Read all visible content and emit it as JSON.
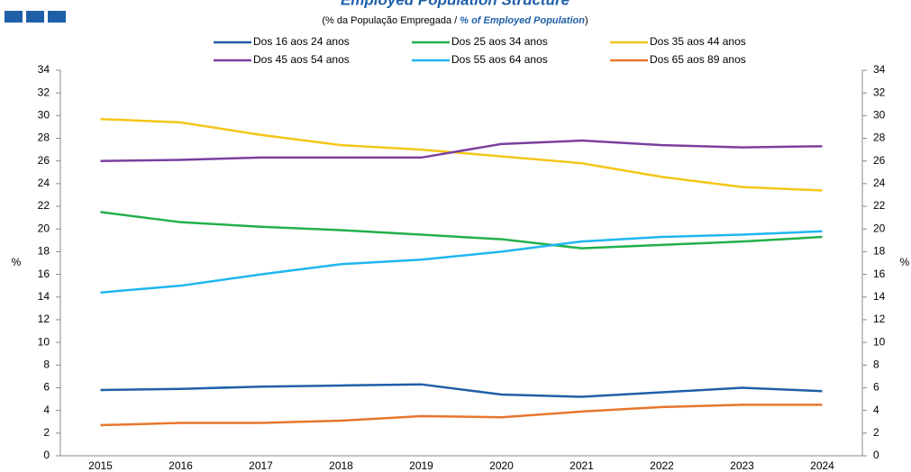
{
  "chart_data": {
    "type": "line",
    "title": "Employed Population Structure",
    "subtitle": [
      "(% da População Empregada / ",
      "% of Employed Population",
      ")"
    ],
    "y_label": "%",
    "categories": [
      "2015",
      "2016",
      "2017",
      "2018",
      "2019",
      "2020",
      "2021",
      "2022",
      "2023",
      "2024"
    ],
    "series": [
      {
        "name": "Dos 16 aos 24 anos",
        "color": "#1f5fa8",
        "values": [
          5.8,
          5.9,
          6.1,
          6.2,
          6.3,
          5.4,
          5.2,
          5.6,
          6.0,
          5.7
        ]
      },
      {
        "name": "Dos 25 aos 34 anos",
        "color": "#22b04b",
        "values": [
          21.5,
          20.6,
          20.2,
          19.9,
          19.5,
          19.1,
          18.3,
          18.6,
          18.9,
          19.3
        ]
      },
      {
        "name": "Dos 35 aos 44 anos",
        "color": "#f5c518",
        "values": [
          29.7,
          29.4,
          28.3,
          27.4,
          27.0,
          26.4,
          25.8,
          24.6,
          23.7,
          23.4
        ]
      },
      {
        "name": "Dos 45 aos 54 anos",
        "color": "#7b3fa0",
        "values": [
          26.0,
          26.1,
          26.3,
          26.3,
          26.3,
          27.5,
          27.8,
          27.4,
          27.2,
          27.3
        ]
      },
      {
        "name": "Dos 55 aos 64 anos",
        "color": "#1fb6f0",
        "values": [
          14.4,
          15.0,
          16.0,
          16.9,
          17.3,
          18.0,
          18.9,
          19.3,
          19.5,
          19.8
        ]
      },
      {
        "name": "Dos 65 aos 89 anos",
        "color": "#e8762c",
        "values": [
          2.7,
          2.9,
          2.9,
          3.1,
          3.5,
          3.4,
          3.9,
          4.3,
          4.5,
          4.5
        ]
      }
    ],
    "ylim": [
      0,
      34
    ],
    "yticks": [
      0,
      2,
      4,
      6,
      8,
      10,
      12,
      14,
      16,
      18,
      20,
      22,
      24,
      26,
      28,
      30,
      32,
      34
    ],
    "grid": false
  }
}
